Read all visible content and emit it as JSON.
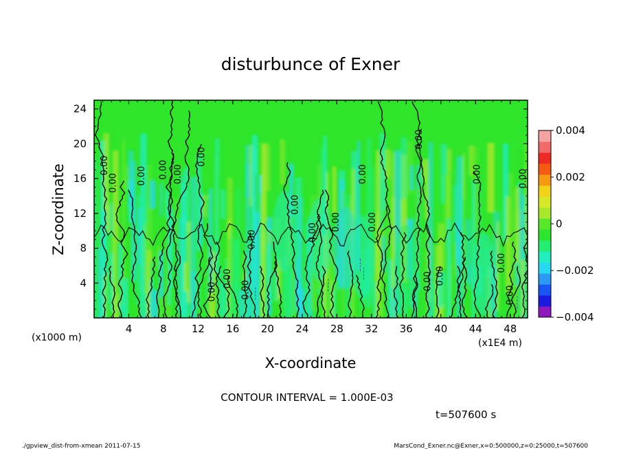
{
  "chart_data": {
    "type": "heatmap",
    "title": "disturbunce of Exner",
    "xlabel": "X-coordinate",
    "ylabel": "Z-coordinate",
    "x_unit_label": "(x1E4 m)",
    "y_unit_label": "(x1000 m)",
    "xlim": [
      0,
      50
    ],
    "ylim": [
      0,
      25
    ],
    "x_ticks": [
      4,
      8,
      12,
      16,
      20,
      24,
      28,
      32,
      36,
      40,
      44,
      48
    ],
    "x_tick_labels": [
      "4",
      "8",
      "12",
      "16",
      "20",
      "24",
      "28",
      "32",
      "36",
      "40",
      "44",
      "48"
    ],
    "y_ticks": [
      4,
      8,
      12,
      16,
      20,
      24
    ],
    "y_tick_labels": [
      "4",
      "8",
      "12",
      "16",
      "20",
      "24"
    ],
    "contour_interval_text": "CONTOUR INTERVAL = 1.000E-03",
    "time_text": "t=507600 s",
    "contour_labels": [
      {
        "x": 1.5,
        "z": 17.5,
        "text": "0.00"
      },
      {
        "x": 2.5,
        "z": 15.5,
        "text": "0.00"
      },
      {
        "x": 5.8,
        "z": 16.3,
        "text": "0.00"
      },
      {
        "x": 8.3,
        "z": 17.0,
        "text": "0.00"
      },
      {
        "x": 10.0,
        "z": 16.5,
        "text": "0.00"
      },
      {
        "x": 12.7,
        "z": 18.5,
        "text": "0.00"
      },
      {
        "x": 23.5,
        "z": 13.0,
        "text": "0.00"
      },
      {
        "x": 25.5,
        "z": 9.8,
        "text": "0.00"
      },
      {
        "x": 28.2,
        "z": 11.0,
        "text": "0.00"
      },
      {
        "x": 31.3,
        "z": 16.5,
        "text": "0.00"
      },
      {
        "x": 32.4,
        "z": 11.0,
        "text": "0.00"
      },
      {
        "x": 37.8,
        "z": 20.5,
        "text": "0.00"
      },
      {
        "x": 44.5,
        "z": 16.5,
        "text": "0.00"
      },
      {
        "x": 47.3,
        "z": 6.3,
        "text": "0.00"
      },
      {
        "x": 49.8,
        "z": 16.0,
        "text": "0.00"
      },
      {
        "x": 13.9,
        "z": 3.0,
        "text": "0.00"
      },
      {
        "x": 15.7,
        "z": 4.5,
        "text": "0.00"
      },
      {
        "x": 17.8,
        "z": 3.2,
        "text": "0.00"
      },
      {
        "x": 18.5,
        "z": 9.0,
        "text": "0.00"
      },
      {
        "x": 38.8,
        "z": 4.2,
        "text": "0.00"
      },
      {
        "x": 40.2,
        "z": 4.8,
        "text": "0.00"
      },
      {
        "x": 48.3,
        "z": 2.6,
        "text": "0.00"
      }
    ],
    "colorbar": {
      "vmin": -0.004,
      "vmax": 0.004,
      "tick_values": [
        0.004,
        0.002,
        0,
        -0.002,
        -0.004
      ],
      "tick_labels": [
        "0.004",
        "0.002",
        "0",
        "−0.002",
        "−0.004"
      ],
      "colors": [
        "#8e1abf",
        "#1a1ae0",
        "#1a55f5",
        "#2a9af5",
        "#27d9f0",
        "#22eec0",
        "#24ee70",
        "#2de52e",
        "#58e82a",
        "#a8e82c",
        "#d6e828",
        "#f5d21a",
        "#f59a12",
        "#f55a10",
        "#ee2b22",
        "#f06a6a",
        "#f4a2a2"
      ]
    }
  },
  "footer": {
    "left": "./gpview_dist-from-xmean  2011-07-15",
    "right": "MarsCond_Exner.nc@Exner,x=0:500000,z=0:25000,t=507600"
  }
}
